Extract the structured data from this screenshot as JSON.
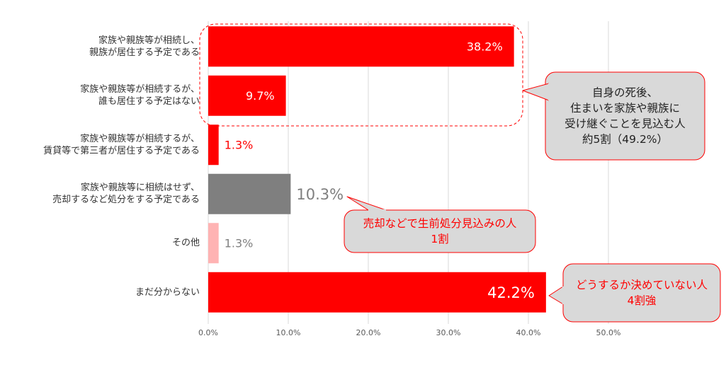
{
  "chart_data": {
    "type": "bar",
    "orientation": "horizontal",
    "categories": [
      "家族や親族等が相続し、\n親族が居住する予定である",
      "家族や親族等が相続するが、\n誰も居住する予定はない",
      "家族や親族等が相続するが、\n賃貸等で第三者が居住する予定である",
      "家族や親族等に相続はせず、\n売却するなど処分をする予定である",
      "その他",
      "まだ分からない"
    ],
    "values": [
      38.2,
      9.7,
      1.3,
      10.3,
      1.3,
      42.2
    ],
    "data_labels": [
      "38.2%",
      "9.7%",
      "1.3%",
      "10.3%",
      "1.3%",
      "42.2%"
    ],
    "bar_colors": [
      "#ff0000",
      "#ff0000",
      "#ff0000",
      "#7f7f7f",
      "#ffb3b3",
      "#ff0000"
    ],
    "label_colors": [
      "#ffffff",
      "#ffffff",
      "#ff0000",
      "#7f7f7f",
      "#808080",
      "#ffffff"
    ],
    "xlim": [
      0,
      55
    ],
    "xticks": [
      0,
      10,
      20,
      30,
      40,
      50
    ],
    "xtick_labels": [
      "0.0%",
      "10.0%",
      "20.0%",
      "30.0%",
      "40.0%",
      "50.0%"
    ],
    "grid": true,
    "annotations": [
      {
        "text": "自身の死後、\n住まいを家族や親族に\n受け継ぐことを見込む人\n約5割（49.2%）",
        "fill": "#d9d9d9",
        "stroke": "#ff0000",
        "text_color": "#222222"
      },
      {
        "text": "売却などで生前処分見込みの人\n1割",
        "fill": "#d9d9d9",
        "stroke": "#ff0000",
        "text_color": "#ff0000"
      },
      {
        "text": "どうするか決めていない人\n4割強",
        "fill": "#d9d9d9",
        "stroke": "#ff0000",
        "text_color": "#ff0000"
      }
    ]
  }
}
